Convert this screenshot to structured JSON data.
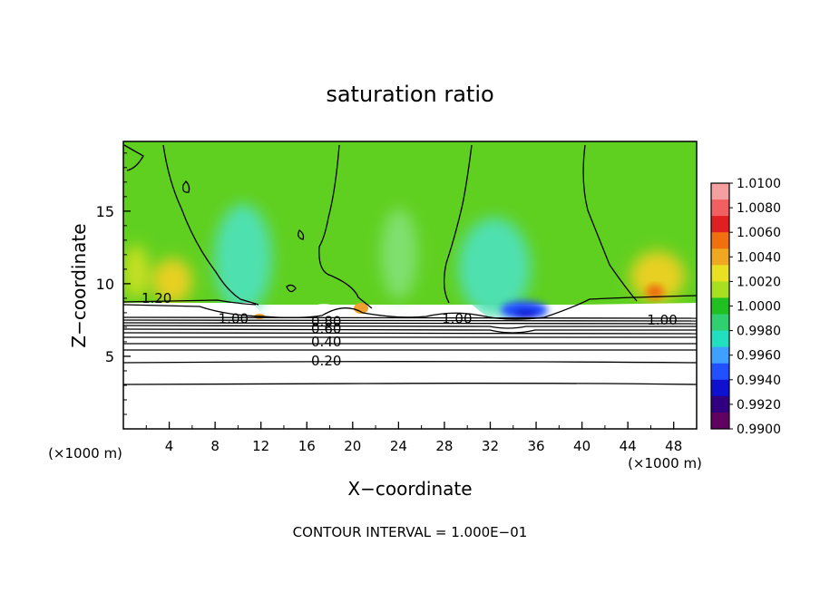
{
  "chart_data": {
    "type": "heatmap",
    "title": "saturation ratio",
    "xlabel": "X−coordinate",
    "ylabel": "Z−coordinate",
    "x_unit_left": "(×1000 m)",
    "x_unit_right": "(×1000 m)",
    "footer": "CONTOUR INTERVAL = 1.000E−01",
    "xlim": [
      0,
      50
    ],
    "ylim": [
      0,
      19.8
    ],
    "x_ticks": [
      4,
      8,
      12,
      16,
      20,
      24,
      28,
      32,
      36,
      40,
      44,
      48
    ],
    "y_ticks": [
      5,
      10,
      15
    ],
    "colorbar": {
      "labels": [
        "1.0100",
        "1.0080",
        "1.0060",
        "1.0040",
        "1.0020",
        "1.0000",
        "0.9980",
        "0.9960",
        "0.9940",
        "0.9920",
        "0.9900"
      ],
      "colors": [
        "#f4a0a0",
        "#f06060",
        "#e02020",
        "#f07010",
        "#f0a820",
        "#e8e020",
        "#a8e020",
        "#20c020",
        "#30d070",
        "#20e0c0",
        "#40a0ff",
        "#2050ff",
        "#1010d0",
        "#300080",
        "#600060"
      ]
    },
    "contour_labels": [
      {
        "text": "1.20",
        "x": 2.9,
        "z": 9.0
      },
      {
        "text": "1.00",
        "x": 9.6,
        "z": 7.6
      },
      {
        "text": "1.00",
        "x": 29.1,
        "z": 7.6
      },
      {
        "text": "1.00",
        "x": 47.0,
        "z": 7.5
      },
      {
        "text": "0.80",
        "x": 17.7,
        "z": 7.4
      },
      {
        "text": "0.60",
        "x": 17.7,
        "z": 6.9
      },
      {
        "text": "0.40",
        "x": 17.7,
        "z": 6.0
      },
      {
        "text": "0.20",
        "x": 17.7,
        "z": 4.7
      }
    ]
  }
}
